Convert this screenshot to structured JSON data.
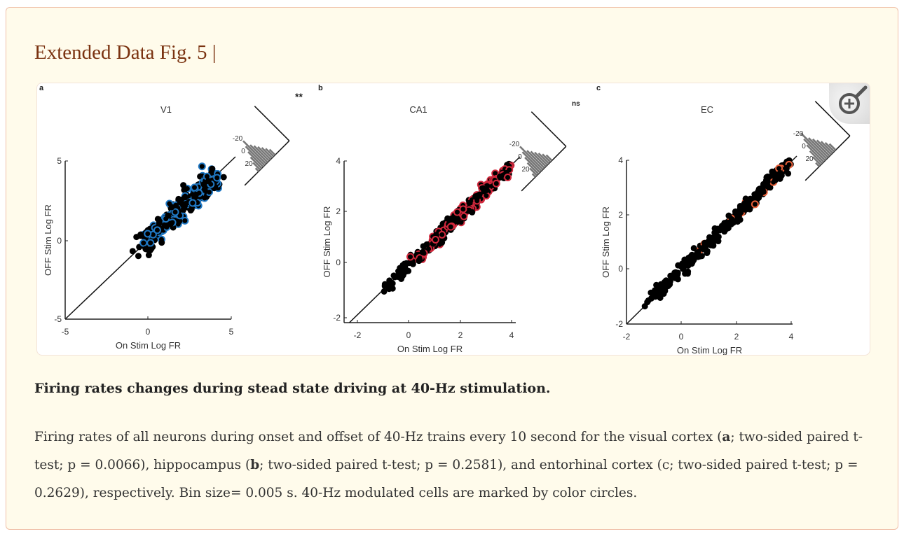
{
  "figure_title": "Extended Data Fig. 5 |",
  "caption_title": "Firing rates changes during stead state driving at 40-Hz stimulation.",
  "caption_body": {
    "p1": "Firing rates of all neurons during onset and offset of 40-Hz trains every 10 second for the visual cortex (",
    "b1": "a",
    "p2": "; two-sided paired t-test; p = 0.0066), hippocampus (",
    "b2": "b",
    "p3": "; two-sided paired t-test; p = 0.2581), and entorhinal cortex (c; two-sided paired t-test; p = 0.2629), respectively. Bin size= 0.005 s. 40-Hz modulated cells are marked by color circles."
  },
  "zoom_button": {
    "icon": "zoom-in-icon"
  },
  "panels": [
    {
      "label": "a",
      "title": "V1",
      "xlabel": "On Stim Log FR",
      "ylabel": "OFF Stim Log FR",
      "xticks": [
        "-5",
        "0",
        "5"
      ],
      "yticks": [
        "-5",
        "0",
        "5"
      ],
      "inset_ticks": [
        "-20",
        "0",
        "20"
      ],
      "significance": "**",
      "marker_color": "#1f78c4"
    },
    {
      "label": "b",
      "title": "CA1",
      "xlabel": "On Stim Log FR",
      "ylabel": "OFF Stim Log FR",
      "xticks": [
        "-2",
        "0",
        "2",
        "4"
      ],
      "yticks": [
        "-2",
        "0",
        "2",
        "4"
      ],
      "inset_ticks": [
        "-20",
        "0",
        "20"
      ],
      "significance": "ns",
      "marker_color": "#d0283c"
    },
    {
      "label": "c",
      "title": "EC",
      "xlabel": "On Stim Log FR",
      "ylabel": "OFF Stim Log FR",
      "xticks": [
        "-2",
        "0",
        "2",
        "4"
      ],
      "yticks": [
        "-2",
        "0",
        "2",
        "4"
      ],
      "inset_ticks": [
        "-20",
        "0",
        "20"
      ],
      "significance": "",
      "marker_color": "#e8603a"
    }
  ]
}
